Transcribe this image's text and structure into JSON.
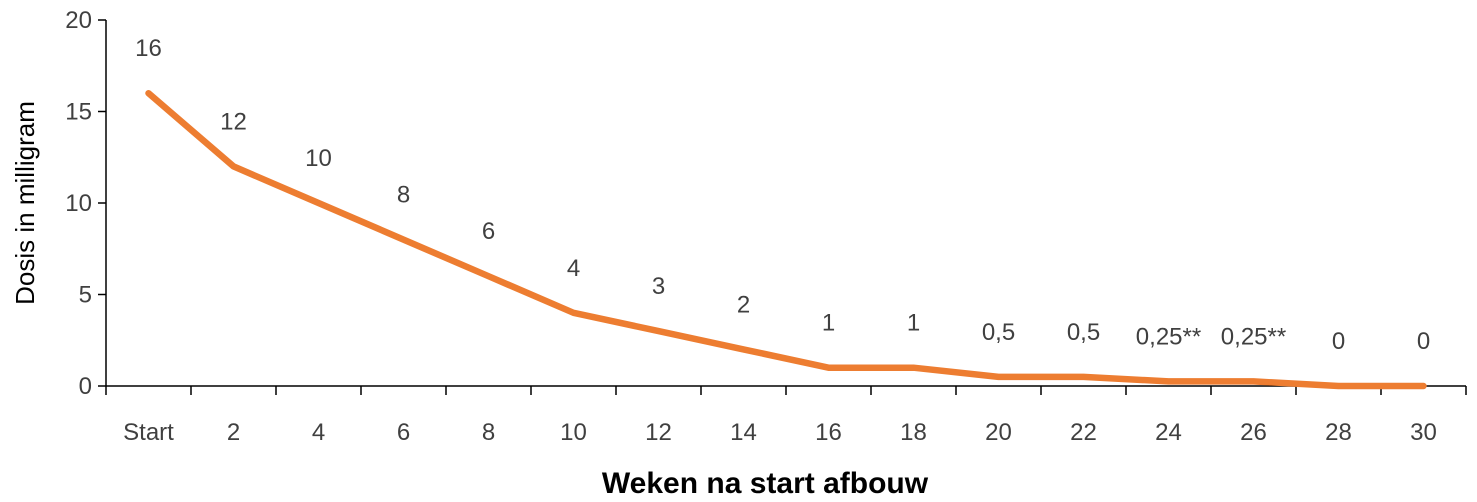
{
  "chart_data": {
    "type": "line",
    "title": "",
    "xlabel": "Weken na start afbouw",
    "ylabel": "Dosis in milligram",
    "categories": [
      "Start",
      "2",
      "4",
      "6",
      "8",
      "10",
      "12",
      "14",
      "16",
      "18",
      "20",
      "22",
      "24",
      "26",
      "28",
      "30"
    ],
    "series": [
      {
        "values": [
          16,
          12,
          10,
          8,
          6,
          4,
          3,
          2,
          1,
          1,
          0.5,
          0.5,
          0.25,
          0.25,
          0,
          0
        ],
        "labels": [
          "16",
          "12",
          "10",
          "8",
          "6",
          "4",
          "3",
          "2",
          "1",
          "1",
          "0,5",
          "0,5",
          "0,25**",
          "0,25**",
          "0",
          "0"
        ],
        "color": "#ED7D31"
      }
    ],
    "ylim": [
      0,
      20
    ],
    "yticks": [
      "0",
      "5",
      "10",
      "15",
      "20"
    ],
    "grid": false,
    "legend": "none"
  }
}
